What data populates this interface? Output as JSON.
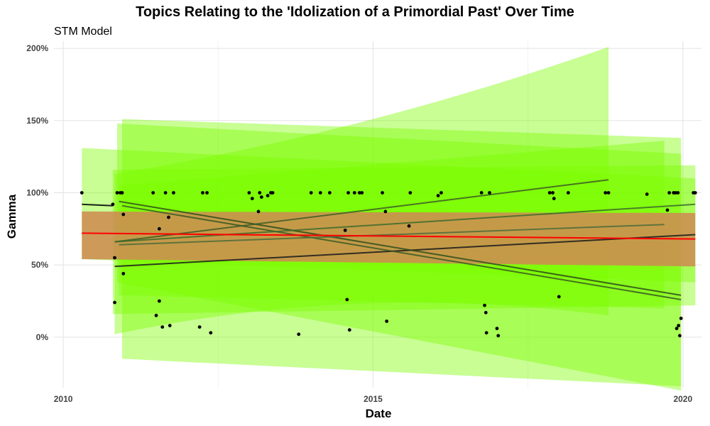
{
  "header": {
    "title": "Topics Relating to the 'Idolization of a Primordial Past' Over Time",
    "subtitle": "STM Model"
  },
  "chart_data": {
    "type": "scatter",
    "title": "Topics Relating to the 'Idolization of a Primordial Past' Over Time",
    "subtitle": "STM Model",
    "xlabel": "Date",
    "ylabel": "Gamma",
    "xlim": [
      2009.85,
      2020.3
    ],
    "ylim": [
      -0.35,
      2.05
    ],
    "x_ticks": [
      2010,
      2015,
      2020
    ],
    "y_ticks": [
      0,
      0.5,
      1.0,
      1.5,
      2.0
    ],
    "y_tick_labels": [
      "0%",
      "50%",
      "100%",
      "150%",
      "200%"
    ],
    "grid": true,
    "colors": {
      "band": "#7CFC00",
      "overall_band": "#CD8C52",
      "overall_line": "#FF0000",
      "topic_lines": "#000000",
      "points": "#000000"
    },
    "points": [
      [
        2010.3,
        1.0
      ],
      [
        2010.8,
        0.92
      ],
      [
        2010.83,
        0.55
      ],
      [
        2010.83,
        0.24
      ],
      [
        2010.87,
        1.0
      ],
      [
        2010.92,
        1.0
      ],
      [
        2010.95,
        1.0
      ],
      [
        2010.97,
        0.85
      ],
      [
        2010.97,
        0.44
      ],
      [
        2011.45,
        1.0
      ],
      [
        2011.5,
        0.15
      ],
      [
        2011.55,
        0.75
      ],
      [
        2011.55,
        0.25
      ],
      [
        2011.6,
        0.07
      ],
      [
        2011.65,
        1.0
      ],
      [
        2011.7,
        0.83
      ],
      [
        2011.72,
        0.08
      ],
      [
        2011.78,
        1.0
      ],
      [
        2012.2,
        0.07
      ],
      [
        2012.25,
        1.0
      ],
      [
        2012.32,
        1.0
      ],
      [
        2012.38,
        0.03
      ],
      [
        2013.0,
        1.0
      ],
      [
        2013.05,
        0.96
      ],
      [
        2013.15,
        0.87
      ],
      [
        2013.17,
        1.0
      ],
      [
        2013.2,
        0.97
      ],
      [
        2013.3,
        0.98
      ],
      [
        2013.35,
        1.0
      ],
      [
        2013.38,
        1.0
      ],
      [
        2013.8,
        0.02
      ],
      [
        2014.0,
        1.0
      ],
      [
        2014.15,
        1.0
      ],
      [
        2014.3,
        1.0
      ],
      [
        2014.55,
        0.74
      ],
      [
        2014.58,
        0.26
      ],
      [
        2014.6,
        1.0
      ],
      [
        2014.62,
        0.05
      ],
      [
        2014.7,
        1.0
      ],
      [
        2014.78,
        1.0
      ],
      [
        2014.82,
        1.0
      ],
      [
        2015.15,
        1.0
      ],
      [
        2015.2,
        0.87
      ],
      [
        2015.22,
        0.11
      ],
      [
        2015.58,
        0.77
      ],
      [
        2015.6,
        1.0
      ],
      [
        2016.05,
        0.98
      ],
      [
        2016.1,
        1.0
      ],
      [
        2016.75,
        1.0
      ],
      [
        2016.8,
        0.22
      ],
      [
        2016.82,
        0.17
      ],
      [
        2016.83,
        0.03
      ],
      [
        2016.88,
        1.0
      ],
      [
        2017.0,
        0.06
      ],
      [
        2017.02,
        0.01
      ],
      [
        2017.85,
        1.0
      ],
      [
        2017.9,
        1.0
      ],
      [
        2017.92,
        0.96
      ],
      [
        2018.0,
        0.28
      ],
      [
        2018.15,
        1.0
      ],
      [
        2018.75,
        1.0
      ],
      [
        2018.8,
        1.0
      ],
      [
        2019.42,
        0.99
      ],
      [
        2019.75,
        0.88
      ],
      [
        2019.78,
        1.0
      ],
      [
        2019.85,
        1.0
      ],
      [
        2019.88,
        1.0
      ],
      [
        2019.9,
        0.06
      ],
      [
        2019.92,
        1.0
      ],
      [
        2019.93,
        0.08
      ],
      [
        2019.95,
        0.01
      ],
      [
        2019.97,
        0.13
      ],
      [
        2020.17,
        1.0
      ],
      [
        2020.2,
        1.0
      ]
    ],
    "topic_bands": [
      {
        "x_start": 2010.3,
        "x_end": 2020.2,
        "upper": [
          1.31,
          1.1
        ],
        "lower": [
          0.54,
          0.38
        ]
      },
      {
        "x_start": 2010.8,
        "x_end": 2020.2,
        "upper": [
          1.16,
          1.19
        ],
        "lower": [
          0.16,
          0.22
        ]
      },
      {
        "x_start": 2010.87,
        "x_end": 2019.97,
        "upper": [
          1.48,
          1.27
        ],
        "lower": [
          0.38,
          -0.37
        ]
      },
      {
        "x_start": 2010.95,
        "x_end": 2019.97,
        "upper": [
          1.51,
          1.38
        ],
        "lower": [
          -0.15,
          -0.34
        ]
      },
      {
        "x_start": 2010.83,
        "x_end": 2018.8,
        "upper": [
          1.13,
          1.41,
          2.01
        ],
        "lower": [
          0.02,
          0.38,
          0.15
        ]
      },
      {
        "x_start": 2010.9,
        "x_end": 2019.7,
        "upper": [
          1.05,
          1.36
        ],
        "lower": [
          0.29,
          0.2
        ]
      }
    ],
    "topic_lines": [
      {
        "x": [
          2010.3,
          2010.8
        ],
        "y": [
          0.92,
          0.91
        ]
      },
      {
        "x": [
          2010.83,
          2020.2
        ],
        "y": [
          0.49,
          0.71
        ]
      },
      {
        "x": [
          2010.9,
          2019.97
        ],
        "y": [
          0.94,
          0.29
        ]
      },
      {
        "x": [
          2010.95,
          2019.97
        ],
        "y": [
          0.91,
          0.26
        ]
      },
      {
        "x": [
          2010.83,
          2018.8
        ],
        "y": [
          0.66,
          1.09
        ]
      },
      {
        "x": [
          2010.83,
          2020.2
        ],
        "y": [
          0.66,
          0.92
        ]
      },
      {
        "x": [
          2010.9,
          2019.7
        ],
        "y": [
          0.64,
          0.78
        ]
      }
    ],
    "overall": {
      "x": [
        2010.3,
        2020.2
      ],
      "line": [
        0.72,
        0.68
      ],
      "upper": [
        0.87,
        0.86
      ],
      "lower": [
        0.54,
        0.49
      ]
    }
  }
}
